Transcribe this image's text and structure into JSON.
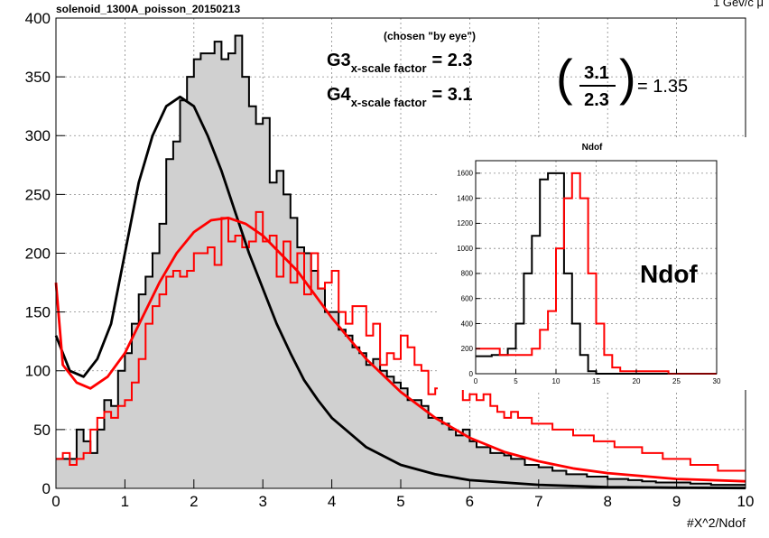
{
  "chart_data": [
    {
      "type": "line",
      "title": "solenoid_1300A_poisson_20150213",
      "corner_label": "1 Gev/c  μ",
      "xlabel": "#X^2/Ndof",
      "ylabel": "",
      "xlim": [
        0,
        10
      ],
      "ylim": [
        0,
        400
      ],
      "x_ticks": [
        "0",
        "1",
        "2",
        "3",
        "4",
        "5",
        "6",
        "7",
        "8",
        "9",
        "10"
      ],
      "y_ticks": [
        "0",
        "50",
        "100",
        "150",
        "200",
        "250",
        "300",
        "350",
        "400"
      ],
      "grid": true,
      "bin_width": 0.1,
      "series": [
        {
          "render": "histogram-filled",
          "color": "#000000",
          "fill": "#d0d0d0",
          "values": [
            25,
            25,
            25,
            50,
            40,
            30,
            50,
            75,
            70,
            100,
            115,
            140,
            165,
            180,
            200,
            225,
            280,
            295,
            330,
            350,
            365,
            370,
            370,
            380,
            365,
            370,
            385,
            350,
            325,
            310,
            315,
            260,
            270,
            250,
            230,
            205,
            200,
            185,
            170,
            150,
            150,
            135,
            130,
            120,
            115,
            105,
            110,
            100,
            95,
            90,
            85,
            75,
            75,
            70,
            60,
            60,
            55,
            50,
            45,
            50,
            40,
            35,
            35,
            30,
            30,
            28,
            25,
            25,
            20,
            20,
            18,
            18,
            15,
            15,
            12,
            12,
            12,
            10,
            10,
            10,
            8,
            8,
            8,
            7,
            7,
            6,
            6,
            5,
            5,
            5,
            5,
            5,
            4,
            4,
            4,
            3,
            3,
            3,
            3,
            3
          ]
        },
        {
          "render": "histogram",
          "color": "#ff0000",
          "values": [
            25,
            30,
            20,
            25,
            30,
            50,
            60,
            65,
            60,
            70,
            75,
            90,
            110,
            140,
            155,
            165,
            180,
            185,
            180,
            185,
            200,
            200,
            205,
            190,
            230,
            210,
            215,
            205,
            210,
            235,
            210,
            215,
            180,
            210,
            175,
            200,
            165,
            200,
            170,
            175,
            185,
            150,
            140,
            155,
            155,
            130,
            140,
            105,
            115,
            110,
            130,
            120,
            105,
            100,
            80,
            85,
            90,
            95,
            90,
            75,
            80,
            75,
            80,
            70,
            65,
            60,
            65,
            60,
            60,
            55,
            55,
            55,
            50,
            50,
            50,
            45,
            45,
            45,
            40,
            40,
            40,
            35,
            35,
            35,
            35,
            30,
            30,
            30,
            25,
            25,
            25,
            25,
            20,
            20,
            20,
            20,
            15,
            15,
            15,
            15
          ]
        },
        {
          "render": "curve",
          "color": "#000000",
          "points": [
            [
              0,
              130
            ],
            [
              0.2,
              100
            ],
            [
              0.4,
              95
            ],
            [
              0.6,
              110
            ],
            [
              0.8,
              140
            ],
            [
              1.0,
              200
            ],
            [
              1.2,
              260
            ],
            [
              1.4,
              300
            ],
            [
              1.6,
              325
            ],
            [
              1.8,
              333
            ],
            [
              2.0,
              325
            ],
            [
              2.2,
              300
            ],
            [
              2.4,
              270
            ],
            [
              2.6,
              235
            ],
            [
              2.8,
              200
            ],
            [
              3.0,
              170
            ],
            [
              3.2,
              140
            ],
            [
              3.4,
              115
            ],
            [
              3.6,
              92
            ],
            [
              3.8,
              75
            ],
            [
              4.0,
              60
            ],
            [
              4.5,
              35
            ],
            [
              5.0,
              20
            ],
            [
              5.5,
              12
            ],
            [
              6.0,
              7
            ],
            [
              7.0,
              3
            ],
            [
              8.0,
              1
            ],
            [
              9.0,
              0.5
            ],
            [
              10.0,
              0.2
            ]
          ]
        },
        {
          "render": "curve",
          "color": "#ff0000",
          "points": [
            [
              0,
              175
            ],
            [
              0.1,
              105
            ],
            [
              0.3,
              90
            ],
            [
              0.5,
              85
            ],
            [
              0.75,
              95
            ],
            [
              1.0,
              115
            ],
            [
              1.25,
              145
            ],
            [
              1.5,
              175
            ],
            [
              1.75,
              200
            ],
            [
              2.0,
              218
            ],
            [
              2.25,
              228
            ],
            [
              2.5,
              230
            ],
            [
              2.75,
              225
            ],
            [
              3.0,
              215
            ],
            [
              3.25,
              200
            ],
            [
              3.5,
              185
            ],
            [
              3.75,
              165
            ],
            [
              4.0,
              145
            ],
            [
              4.5,
              110
            ],
            [
              5.0,
              82
            ],
            [
              5.5,
              60
            ],
            [
              6.0,
              43
            ],
            [
              6.5,
              31
            ],
            [
              7.0,
              23
            ],
            [
              7.5,
              17
            ],
            [
              8.0,
              13
            ],
            [
              9.0,
              8
            ],
            [
              10.0,
              6
            ]
          ]
        }
      ],
      "annotations": {
        "chosen": "(chosen \"by eye\")",
        "g3_main": "G3",
        "g3_sub": "x-scale factor",
        "g3_eq": "=  2.3",
        "g4_main": "G4",
        "g4_sub": "x-scale factor",
        "g4_eq": "=  3.1",
        "frac_num": "3.1",
        "frac_den": "2.3",
        "frac_result": "= 1.35"
      }
    },
    {
      "type": "line",
      "title": "Ndof",
      "label": "Ndof",
      "xlim": [
        0,
        30
      ],
      "ylim": [
        0,
        1700
      ],
      "x_ticks": [
        "0",
        "5",
        "10",
        "15",
        "20",
        "25",
        "30"
      ],
      "y_ticks": [
        "0",
        "200",
        "400",
        "600",
        "800",
        "1000",
        "1200",
        "1400",
        "1600"
      ],
      "grid": true,
      "bin_width": 1,
      "series": [
        {
          "render": "histogram",
          "color": "#000000",
          "values": [
            140,
            140,
            150,
            150,
            200,
            400,
            800,
            1100,
            1550,
            1600,
            1600,
            800,
            400,
            150,
            20,
            0,
            0,
            0,
            0,
            0,
            0,
            0,
            0,
            0,
            0,
            0,
            0,
            0,
            0,
            0
          ]
        },
        {
          "render": "histogram",
          "color": "#ff0000",
          "values": [
            200,
            200,
            200,
            150,
            150,
            150,
            150,
            200,
            350,
            500,
            1000,
            1400,
            1600,
            1400,
            800,
            400,
            150,
            50,
            20,
            20,
            20,
            20,
            20,
            20,
            0,
            0,
            0,
            0,
            0,
            0
          ]
        }
      ]
    }
  ]
}
